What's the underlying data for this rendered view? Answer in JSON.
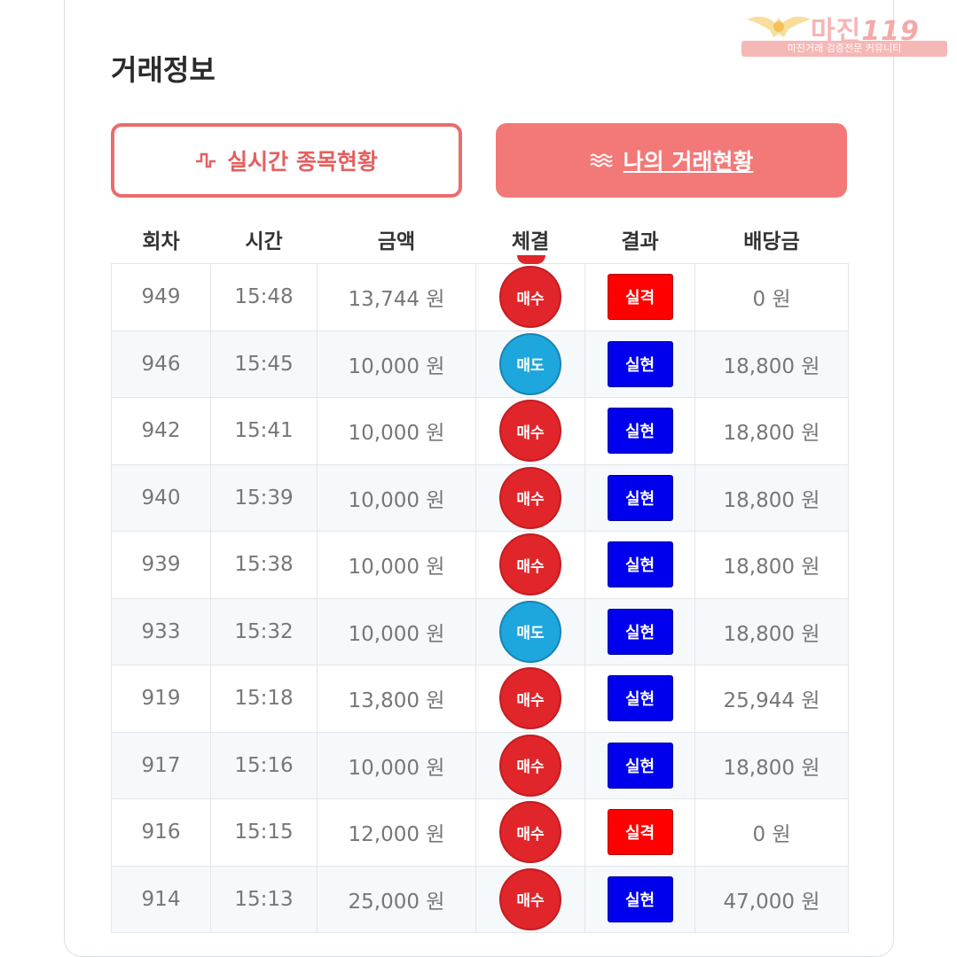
{
  "watermark": {
    "brand": "마진",
    "brand_suffix": "119",
    "tagline": "마진거래 검증전문 커뮤니티"
  },
  "section": {
    "title": "거래정보"
  },
  "tabs": {
    "live_label": "실시간 종목현황",
    "live_icon": "pulse-icon",
    "mine_label": "나의 거래현황",
    "mine_icon": "waves-icon"
  },
  "table": {
    "headers": [
      "회차",
      "시간",
      "금액",
      "체결",
      "결과",
      "배당금"
    ],
    "rows": [
      {
        "round": "949",
        "time": "15:48",
        "amount": "13,744 원",
        "exec": "매수",
        "exec_type": "buy",
        "result": "실격",
        "result_type": "fail",
        "payout": "0 원"
      },
      {
        "round": "946",
        "time": "15:45",
        "amount": "10,000 원",
        "exec": "매도",
        "exec_type": "sell",
        "result": "실현",
        "result_type": "win",
        "payout": "18,800 원"
      },
      {
        "round": "942",
        "time": "15:41",
        "amount": "10,000 원",
        "exec": "매수",
        "exec_type": "buy",
        "result": "실현",
        "result_type": "win",
        "payout": "18,800 원"
      },
      {
        "round": "940",
        "time": "15:39",
        "amount": "10,000 원",
        "exec": "매수",
        "exec_type": "buy",
        "result": "실현",
        "result_type": "win",
        "payout": "18,800 원"
      },
      {
        "round": "939",
        "time": "15:38",
        "amount": "10,000 원",
        "exec": "매수",
        "exec_type": "buy",
        "result": "실현",
        "result_type": "win",
        "payout": "18,800 원"
      },
      {
        "round": "933",
        "time": "15:32",
        "amount": "10,000 원",
        "exec": "매도",
        "exec_type": "sell",
        "result": "실현",
        "result_type": "win",
        "payout": "18,800 원"
      },
      {
        "round": "919",
        "time": "15:18",
        "amount": "13,800 원",
        "exec": "매수",
        "exec_type": "buy",
        "result": "실현",
        "result_type": "win",
        "payout": "25,944 원"
      },
      {
        "round": "917",
        "time": "15:16",
        "amount": "10,000 원",
        "exec": "매수",
        "exec_type": "buy",
        "result": "실현",
        "result_type": "win",
        "payout": "18,800 원"
      },
      {
        "round": "916",
        "time": "15:15",
        "amount": "12,000 원",
        "exec": "매수",
        "exec_type": "buy",
        "result": "실격",
        "result_type": "fail",
        "payout": "0 원"
      },
      {
        "round": "914",
        "time": "15:13",
        "amount": "25,000 원",
        "exec": "매수",
        "exec_type": "buy",
        "result": "실현",
        "result_type": "win",
        "payout": "47,000 원"
      }
    ]
  },
  "colors": {
    "accent": "#f37878",
    "buy": "#e0262a",
    "sell": "#1ea7dd",
    "fail": "#ff0000",
    "win": "#0000ee"
  }
}
